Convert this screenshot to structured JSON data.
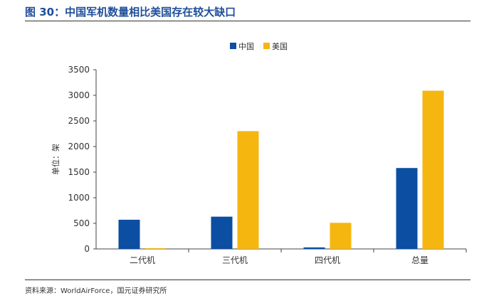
{
  "header": {
    "title": "图 30：中国军机数量相比美国存在较大缺口"
  },
  "footer": {
    "source": "资料来源：WorldAirForce，国元证券研究所"
  },
  "colors": {
    "china": "#0b4ea2",
    "usa": "#f5b610",
    "title": "#1f4e9a"
  },
  "chart_data": {
    "type": "bar",
    "title": "",
    "xlabel": "",
    "ylabel": "单位：架",
    "categories": [
      "二代机",
      "三代机",
      "四代机",
      "总量"
    ],
    "series": [
      {
        "name": "中国",
        "values": [
          570,
          630,
          30,
          1580
        ]
      },
      {
        "name": "美国",
        "values": [
          15,
          2300,
          510,
          3090
        ]
      }
    ],
    "ylim": [
      0,
      3500
    ],
    "yticks": [
      "0",
      "500",
      "1000",
      "1500",
      "2000",
      "2500",
      "3000",
      "3500"
    ],
    "legend": "top-center",
    "grid": false
  }
}
